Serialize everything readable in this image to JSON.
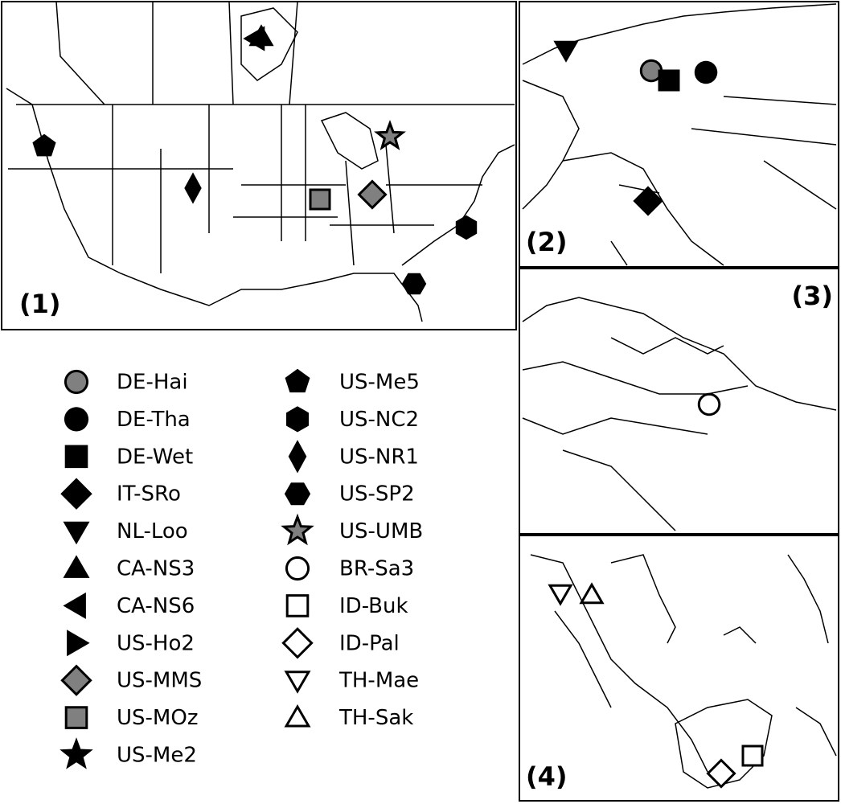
{
  "panels": [
    {
      "label": "(1)"
    },
    {
      "label": "(2)"
    },
    {
      "label": "(3)"
    },
    {
      "label": "(4)"
    }
  ],
  "legend": [
    {
      "name": "DE-Hai",
      "marker": "circle",
      "fill": "#808080"
    },
    {
      "name": "DE-Tha",
      "marker": "circle",
      "fill": "#000000"
    },
    {
      "name": "DE-Wet",
      "marker": "square",
      "fill": "#000000"
    },
    {
      "name": "IT-SRo",
      "marker": "diamond",
      "fill": "#000000"
    },
    {
      "name": "NL-Loo",
      "marker": "triangle-down",
      "fill": "#000000"
    },
    {
      "name": "CA-NS3",
      "marker": "triangle-up",
      "fill": "#000000"
    },
    {
      "name": "CA-NS6",
      "marker": "triangle-left",
      "fill": "#000000"
    },
    {
      "name": "US-Ho2",
      "marker": "triangle-right",
      "fill": "#000000"
    },
    {
      "name": "US-MMS",
      "marker": "diamond",
      "fill": "#808080"
    },
    {
      "name": "US-MOz",
      "marker": "square",
      "fill": "#808080"
    },
    {
      "name": "US-Me2",
      "marker": "star",
      "fill": "#000000"
    },
    {
      "name": "US-Me5",
      "marker": "pentagon",
      "fill": "#000000"
    },
    {
      "name": "US-NC2",
      "marker": "hexagon",
      "fill": "#000000"
    },
    {
      "name": "US-NR1",
      "marker": "thin-diamond",
      "fill": "#000000"
    },
    {
      "name": "US-SP2",
      "marker": "hexagon-flat",
      "fill": "#000000"
    },
    {
      "name": "US-UMB",
      "marker": "star",
      "fill": "#808080"
    },
    {
      "name": "BR-Sa3",
      "marker": "circle",
      "fill": "#ffffff"
    },
    {
      "name": "ID-Buk",
      "marker": "square",
      "fill": "#ffffff"
    },
    {
      "name": "ID-Pal",
      "marker": "diamond",
      "fill": "#ffffff"
    },
    {
      "name": "TH-Mae",
      "marker": "triangle-down",
      "fill": "#ffffff"
    },
    {
      "name": "TH-Sak",
      "marker": "triangle-up",
      "fill": "#ffffff"
    }
  ]
}
